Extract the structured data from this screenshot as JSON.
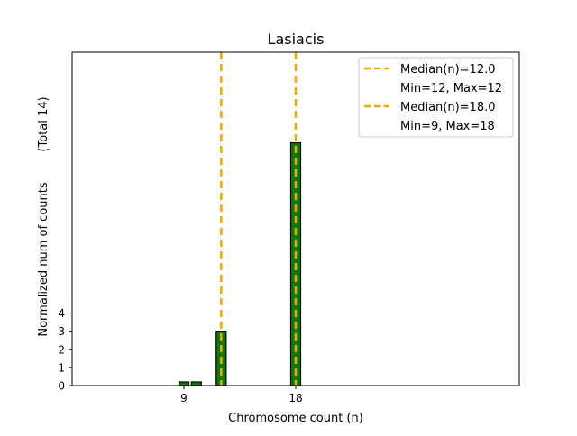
{
  "chart_data": {
    "type": "bar",
    "title": "Lasiacis",
    "xlabel": "Chromosome count (n)",
    "ylabel": "Normalized num of counts",
    "ylabel_note": "(Total 14)",
    "xlim": [
      0,
      36
    ],
    "ylim": [
      0,
      18.4
    ],
    "x_ticks": [
      9,
      18
    ],
    "y_ticks": [
      0,
      1,
      2,
      3,
      4
    ],
    "bar_width": 0.8,
    "bars": [
      {
        "x": 9,
        "value": 0.2
      },
      {
        "x": 10,
        "value": 0.2
      },
      {
        "x": 12,
        "value": 3.0
      },
      {
        "x": 18,
        "value": 13.4
      }
    ],
    "medians": [
      {
        "label": "Median(n)=12.0",
        "sublabel": "Min=12, Max=12",
        "x": 12
      },
      {
        "label": "Median(n)=18.0",
        "sublabel": "Min=9, Max=18",
        "x": 18
      }
    ],
    "legend_position": "top-right",
    "colors": {
      "bar_fill": "#0b7a0b",
      "bar_edge": "#000000",
      "median_line": "#f0a800"
    }
  }
}
